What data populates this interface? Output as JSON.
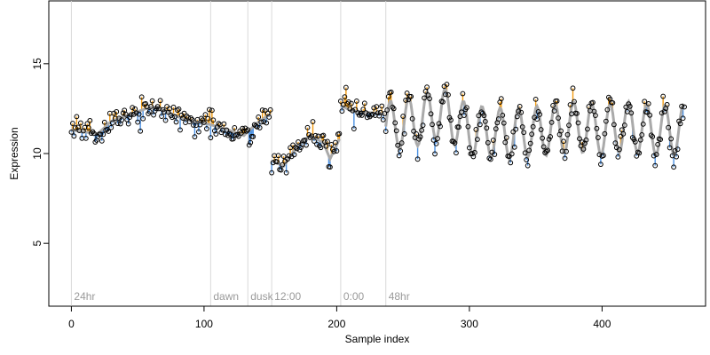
{
  "chart_data": {
    "type": "line",
    "xlabel": "Sample index",
    "ylabel": "Expression",
    "xlim": [
      -17,
      478
    ],
    "ylim": [
      1.5,
      18.5
    ],
    "x_ticks": [
      0,
      100,
      200,
      300,
      400
    ],
    "y_ticks": [
      5,
      10,
      15
    ],
    "grid": false,
    "legend": "none",
    "colors": {
      "points_stroke": "#000000",
      "trend_line": "#aaaaaa",
      "residual_up": "#f39c12",
      "residual_down": "#4a90e2",
      "vline": "#d9d9d9",
      "vline_label": "#9a9a9a"
    },
    "vertical_markers": [
      {
        "x": 0,
        "label": "24hr"
      },
      {
        "x": 105,
        "label": "dawn"
      },
      {
        "x": 133,
        "label": "dusk"
      },
      {
        "x": 151,
        "label": "12:00"
      },
      {
        "x": 203,
        "label": "0:00"
      },
      {
        "x": 237,
        "label": "48hr"
      }
    ],
    "segments": [
      {
        "start": 0,
        "end": 150,
        "points": [
          [
            0,
            11.3
          ],
          [
            20,
            11.1
          ],
          [
            30,
            11.8
          ],
          [
            45,
            12.2
          ],
          [
            60,
            12.6
          ],
          [
            70,
            12.4
          ],
          [
            85,
            11.9
          ],
          [
            100,
            11.7
          ],
          [
            115,
            11.4
          ],
          [
            130,
            11.0
          ],
          [
            140,
            11.7
          ],
          [
            150,
            12.2
          ]
        ]
      },
      {
        "start": 151,
        "end": 202,
        "points": [
          [
            151,
            9.6
          ],
          [
            160,
            9.3
          ],
          [
            170,
            10.4
          ],
          [
            180,
            11.0
          ],
          [
            190,
            10.6
          ],
          [
            195,
            9.7
          ],
          [
            202,
            10.8
          ]
        ]
      },
      {
        "start": 203,
        "end": 236,
        "points": [
          [
            203,
            12.7
          ],
          [
            210,
            12.4
          ],
          [
            222,
            12.3
          ],
          [
            236,
            12.2
          ]
        ]
      },
      {
        "start": 237,
        "end": 462,
        "points": [
          [
            237,
            11.5
          ],
          [
            260,
            11.8
          ],
          [
            280,
            12.3
          ],
          [
            300,
            11.3
          ],
          [
            330,
            11.1
          ],
          [
            360,
            11.3
          ],
          [
            380,
            11.5
          ],
          [
            400,
            11.3
          ],
          [
            420,
            11.5
          ],
          [
            440,
            11.3
          ],
          [
            462,
            11.3
          ]
        ]
      }
    ],
    "oscillation": {
      "start": 237,
      "end": 462,
      "amplitude": 1.4,
      "period": 13.8
    },
    "noise_sd": 0.35,
    "seed": 7
  }
}
